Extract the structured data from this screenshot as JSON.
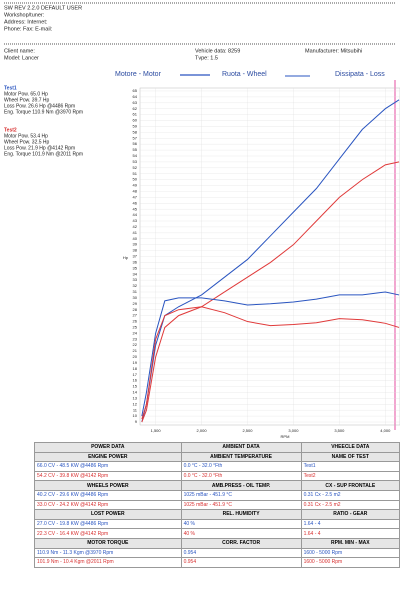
{
  "header": {
    "software": "SW REV 2.2.0   DEFAULT USER",
    "workshop": "Workshop/tuner:",
    "address": "Address:   Internet:",
    "phone": "Phone:  Fax:  E-mail:",
    "client": "Client name:",
    "vehicle": "Vehicle data: 8259",
    "manufacturer": "Manufacturer: Mitsubihi",
    "model": "Model: Lancer",
    "type": "Tvpe: 1.5"
  },
  "legend": [
    "Motore - Motor",
    "Ruota - Wheel",
    "Dissipata - Loss"
  ],
  "tests": [
    {
      "name": "Test1",
      "lines": [
        "Motor Pow.   65.0 Hp",
        "Wheel Pow.  39.7 Hp",
        "Loss Pow.     26.6 Hp  @4486 Rpm",
        "Eng. Torque  110.9 Nm  @3970 Rpm"
      ]
    },
    {
      "name": "Test2",
      "lines": [
        "Motor Pow.   53.4 Hp",
        "Wheel Pow.  32.5 Hp",
        "Loss Pow.     21.9 Hp  @4142 Rpm",
        "Eng. Torque  101.9 Nm  @2011 Rpm"
      ]
    }
  ],
  "chart_data": {
    "type": "line",
    "y_label": "Hp",
    "x_label": "RPM",
    "x": [
      1350,
      1400,
      1500,
      1600,
      1750,
      2000,
      2250,
      2500,
      2750,
      3000,
      3250,
      3500,
      3750,
      4000,
      4150
    ],
    "series": [
      {
        "color": "#2a55c0",
        "values": [
          9,
          12,
          22,
          27,
          28.5,
          30.5,
          33.5,
          36.5,
          40.5,
          44.5,
          48.5,
          53.5,
          58.5,
          62,
          63.5
        ]
      },
      {
        "color": "#e03a3a",
        "values": [
          9,
          11,
          20,
          25,
          27,
          28.5,
          31,
          33.5,
          36,
          39,
          43,
          47,
          50,
          52.5,
          53
        ]
      },
      {
        "color": "#2a55c0",
        "values": [
          10,
          14,
          24,
          29.5,
          30,
          30,
          29.5,
          28.8,
          29,
          29.3,
          29.8,
          30.5,
          30.5,
          31,
          30.5
        ]
      },
      {
        "color": "#e03a3a",
        "values": [
          9.5,
          12,
          23,
          27,
          28,
          28.5,
          27.5,
          26,
          25.3,
          25.5,
          25.8,
          26.5,
          26.3,
          25.7,
          25
        ]
      }
    ],
    "xlim": [
      1330,
      4160
    ],
    "ylim": [
      8.5,
      65.5
    ],
    "xticks": [
      {
        "value": 1500,
        "label": "1,500"
      },
      {
        "value": 2000,
        "label": "2,000"
      },
      {
        "value": 2500,
        "label": "2,500"
      },
      {
        "value": 3000,
        "label": "3,000"
      },
      {
        "value": 3500,
        "label": "3,500"
      },
      {
        "value": 4000,
        "label": "4,000"
      }
    ],
    "yticks": [
      9,
      10,
      11,
      12,
      13,
      14,
      15,
      16,
      17,
      18,
      19,
      20,
      21,
      22,
      23,
      24,
      25,
      26,
      27,
      28,
      29,
      30,
      31,
      32,
      33,
      34,
      35,
      36,
      37,
      38,
      39,
      40,
      41,
      42,
      43,
      44,
      45,
      46,
      47,
      48,
      49,
      50,
      51,
      52,
      53,
      54,
      55,
      56,
      57,
      58,
      59,
      60,
      61,
      62,
      63,
      64,
      65
    ],
    "grid": true
  },
  "table": {
    "header": [
      "POWER DATA",
      "AMBIENT DATA",
      "VHEECLE DATA"
    ],
    "sections": [
      {
        "title": [
          "ENGINE POWER",
          "AMBIENT TEMPERATURE",
          "NAME OF TEST"
        ],
        "rows": [
          [
            "66.0 CV - 48.5 KW @4486 Rpm",
            "0.0 °C - 32.0 °Fth",
            "Test1"
          ],
          [
            "54.2 CV - 39.8 KW @4142 Rpm",
            "0.0 °C - 32.0 °Fth",
            "Test2"
          ]
        ]
      },
      {
        "title": [
          "WHEELS POWER",
          "AMB.PRESS - OIL TEMP.",
          "CX - SUP FRONTALE"
        ],
        "rows": [
          [
            "40.2 CV - 29.6 KW @4486 Rpm",
            "1025 mBar - 451.9 °C",
            "0.31 Cx - 2.5 m2"
          ],
          [
            "33.0 CV - 24.2 KW @4142 Rpm",
            "1025 mBar - 451.9 °C",
            "0.31 Cx - 2.5 m2"
          ]
        ]
      },
      {
        "title": [
          "LOST POWER",
          "REL. HUMIDITY",
          "RATIO - GEAR"
        ],
        "rows": [
          [
            "27.0 CV - 19.8 KW @4486 Rpm",
            "40 %",
            "1.64 - 4"
          ],
          [
            "22.3 CV - 16.4 KW @4142 Rpm",
            "40 %",
            "1.64 - 4"
          ]
        ]
      },
      {
        "title": [
          "MOTOR TORQUE",
          "CORR. FACTOR",
          "RPM. MIN - MAX"
        ],
        "rows": [
          [
            "110.9 Nm - 11.3 Kgm @3970 Rpm",
            "0.954",
            "1600 - 5000 Rpm"
          ],
          [
            "101.9 Nm - 10.4 Kgm @2011 Rpm",
            "0.954",
            "1600 - 5000 Rpm"
          ]
        ]
      }
    ]
  }
}
